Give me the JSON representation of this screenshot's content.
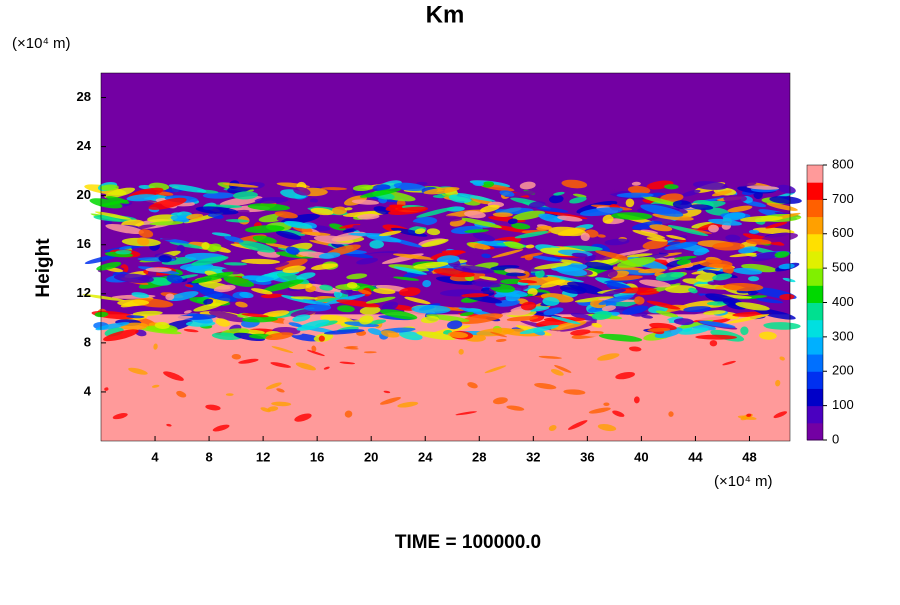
{
  "chart_data": {
    "type": "contour",
    "title": "Km",
    "y_unit": "(×10⁴ m)",
    "x_unit": "(×10⁴ m)",
    "ylabel": "Height",
    "footer": "TIME = 100000.0",
    "xlim": [
      0,
      51
    ],
    "xticks": [
      4,
      8,
      12,
      16,
      20,
      24,
      28,
      32,
      36,
      40,
      44,
      48
    ],
    "ylim": [
      0,
      30
    ],
    "yticks": [
      4,
      8,
      12,
      16,
      20,
      24,
      28
    ],
    "colorbar": {
      "lim": [
        0,
        800
      ],
      "ticks": [
        0,
        100,
        200,
        300,
        400,
        500,
        600,
        700,
        800
      ],
      "colors": [
        "#7300a3",
        "#4a00c0",
        "#0000c8",
        "#0030f0",
        "#0070ff",
        "#00b0ff",
        "#00e0e0",
        "#00e090",
        "#00d800",
        "#80f000",
        "#e0f000",
        "#ffe000",
        "#ffa000",
        "#ff6000",
        "#ff0000",
        "#ff9a9a"
      ]
    }
  }
}
